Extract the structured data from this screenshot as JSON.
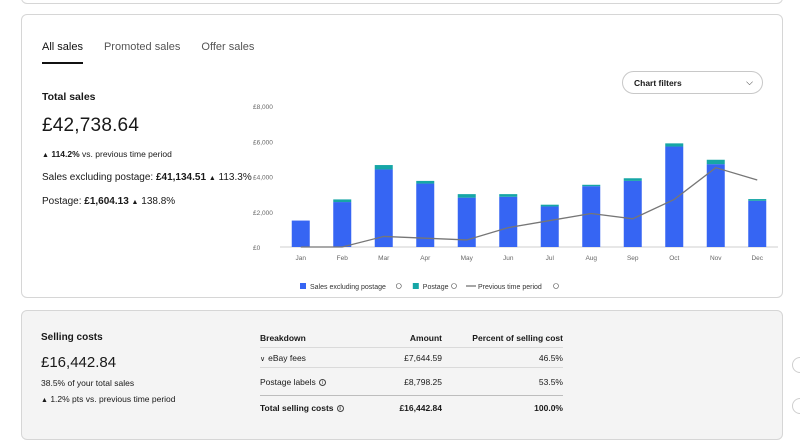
{
  "tabs": [
    {
      "label": "All sales",
      "active": true
    },
    {
      "label": "Promoted sales",
      "active": false
    },
    {
      "label": "Offer sales",
      "active": false
    }
  ],
  "summary": {
    "title": "Total sales",
    "total": "£42,738.64",
    "change": "114.2%",
    "change_suffix": " vs. previous time period",
    "excl_label": "Sales excluding postage: ",
    "excl_value": "£41,134.51",
    "excl_change": "113.3%",
    "postage_label": "Postage: ",
    "postage_value": "£1,604.13",
    "postage_change": "138.8%"
  },
  "chart_filters": {
    "label": "Chart filters",
    "icon": "chevron-down-icon"
  },
  "colors": {
    "bar_blue": "#3665f3",
    "bar_teal": "#16a6a6",
    "line_grey": "#767676"
  },
  "chart_data": {
    "type": "bar",
    "stacked": true,
    "categories": [
      "Jan",
      "Feb",
      "Mar",
      "Apr",
      "May",
      "Jun",
      "Jul",
      "Aug",
      "Sep",
      "Oct",
      "Nov",
      "Dec"
    ],
    "ylim": [
      0,
      8000
    ],
    "yticks": [
      "£0",
      "£2,000",
      "£4,000",
      "£6,000",
      "£8,000"
    ],
    "ytick_values": [
      0,
      2000,
      4000,
      6000,
      8000
    ],
    "series": [
      {
        "name": "Sales excluding postage",
        "kind": "bar",
        "color": "#3665f3",
        "values": [
          1500,
          2550,
          4400,
          3600,
          2800,
          2850,
          2300,
          3450,
          3750,
          5700,
          4700,
          2620
        ]
      },
      {
        "name": "Postage",
        "kind": "bar",
        "color": "#16a6a6",
        "values": [
          0,
          150,
          250,
          150,
          200,
          150,
          100,
          80,
          150,
          180,
          250,
          100
        ]
      },
      {
        "name": "Previous time period",
        "kind": "line",
        "color": "#767676",
        "values": [
          0,
          0,
          600,
          500,
          400,
          1100,
          1500,
          1900,
          1600,
          2700,
          4500,
          3800
        ]
      }
    ],
    "legend_position": "bottom"
  },
  "costs": {
    "title": "Selling costs",
    "total": "£16,442.84",
    "pct_of_sales": "38.5% of your total sales",
    "change": "1.2% pts",
    "change_suffix": " vs. previous time period",
    "headers": {
      "breakdown": "Breakdown",
      "amount": "Amount",
      "percent": "Percent of selling cost"
    },
    "rows": [
      {
        "label": "eBay fees",
        "amount": "£7,644.59",
        "percent": "46.5%"
      },
      {
        "label": "Postage labels",
        "amount": "£8,798.25",
        "percent": "53.5%"
      }
    ],
    "total_row": {
      "label": "Total selling costs",
      "amount": "£16,442.84",
      "percent": "100.0%"
    }
  }
}
